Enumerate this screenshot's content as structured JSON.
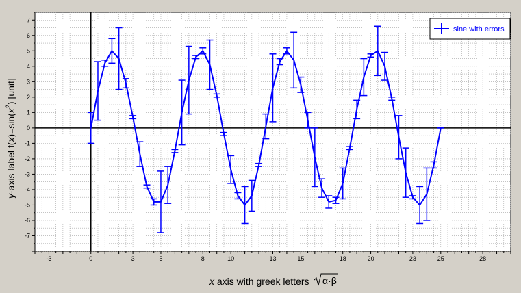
{
  "chart_data": {
    "type": "line",
    "title": "",
    "xlabel_parts": [
      "x",
      " axis with greek letters "
    ],
    "xlabel_sqrt_arg": "α·β",
    "ylabel_parts": [
      "y",
      "-axis label f(",
      "x",
      ")=sin(",
      "x",
      "2",
      ") [unit]"
    ],
    "xlim": [
      -4,
      30
    ],
    "ylim": [
      -8,
      7.5
    ],
    "x_ticks": [
      -3,
      0,
      3,
      5,
      8,
      10,
      13,
      15,
      18,
      20,
      23,
      25,
      28
    ],
    "y_ticks": [
      7,
      6,
      5,
      4,
      3,
      2,
      1,
      0,
      -1,
      -2,
      -3,
      -4,
      -5,
      -6,
      -7
    ],
    "grid": true,
    "legend_position": "top-right",
    "colors": {
      "series": "#0000ff",
      "background": "#d4d0c8",
      "plot": "#ffffff",
      "grid": "#a0a0a0"
    },
    "series": [
      {
        "name": "sine with errors",
        "x": [
          0.0,
          0.5,
          1.0,
          1.5,
          2.0,
          2.5,
          3.0,
          3.5,
          4.0,
          4.5,
          5.0,
          5.5,
          6.0,
          6.5,
          7.0,
          7.5,
          8.0,
          8.5,
          9.0,
          9.5,
          10.0,
          10.5,
          11.0,
          11.5,
          12.0,
          12.5,
          13.0,
          13.5,
          14.0,
          14.5,
          15.0,
          15.5,
          16.0,
          16.5,
          17.0,
          17.5,
          18.0,
          18.5,
          19.0,
          19.5,
          20.0,
          20.5,
          21.0,
          21.5,
          22.0,
          22.5,
          23.0,
          23.5,
          24.0,
          24.5,
          25.0
        ],
        "y": [
          0.0,
          2.4,
          4.2,
          5.0,
          4.5,
          2.9,
          0.7,
          -1.7,
          -3.8,
          -4.8,
          -4.8,
          -3.7,
          -1.5,
          1.0,
          3.1,
          4.6,
          5.0,
          4.1,
          2.1,
          -0.4,
          -2.7,
          -4.4,
          -5.0,
          -4.4,
          -2.4,
          0.1,
          2.6,
          4.3,
          5.0,
          4.4,
          2.8,
          0.5,
          -1.9,
          -3.9,
          -4.8,
          -4.7,
          -3.6,
          -1.3,
          1.2,
          3.3,
          4.7,
          5.0,
          4.0,
          1.9,
          -0.6,
          -2.9,
          -4.5,
          -5.0,
          -4.3,
          -2.4,
          0.0
        ],
        "err": [
          1.0,
          1.9,
          0.2,
          0.8,
          2.0,
          0.3,
          0.1,
          0.8,
          0.1,
          0.2,
          2.0,
          1.2,
          0.1,
          2.1,
          2.2,
          0.1,
          0.2,
          1.6,
          0.1,
          0.1,
          0.9,
          0.2,
          1.2,
          1.0,
          0.1,
          0.8,
          2.2,
          0.2,
          0.2,
          1.8,
          0.5,
          0.5,
          1.9,
          0.6,
          0.4,
          0.2,
          1.0,
          0.1,
          0.6,
          1.2,
          0.1,
          1.6,
          0.9,
          0.1,
          1.4,
          1.6,
          0.1,
          1.2,
          1.7,
          0.2,
          0.0
        ]
      }
    ]
  }
}
